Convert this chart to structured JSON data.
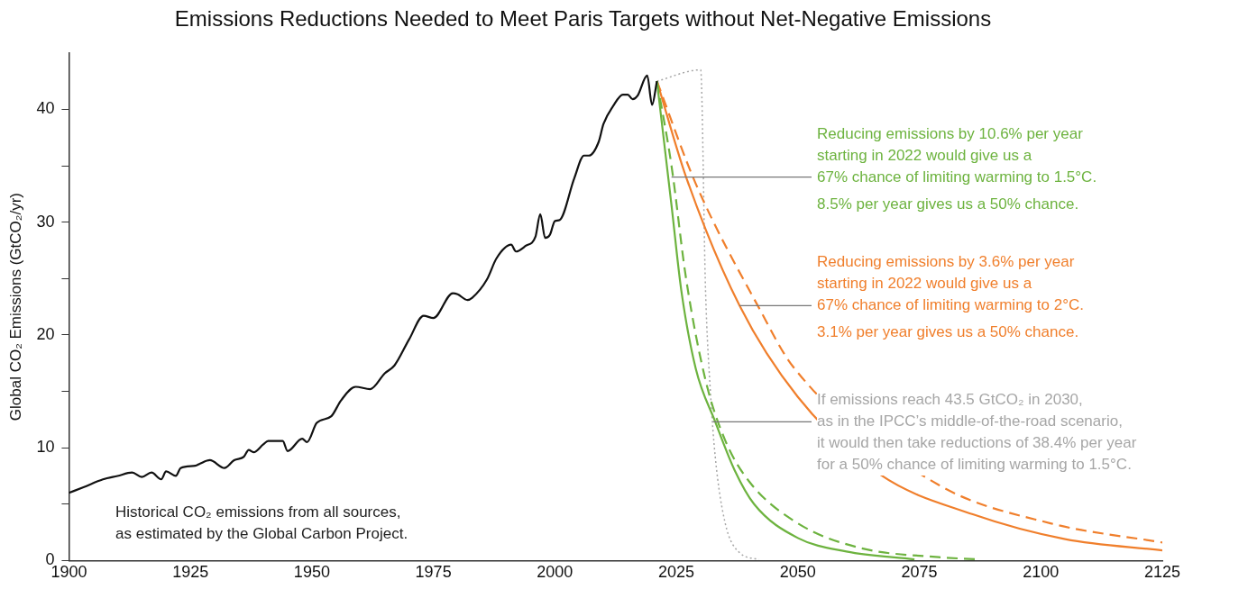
{
  "chart_data": {
    "type": "line",
    "title": "Emissions Reductions Needed to Meet Paris Targets without Net-Negative Emissions",
    "ylabel": "Global CO₂ Emissions (GtCO₂/yr)",
    "xlim": [
      1900,
      2125
    ],
    "xticks": [
      1900,
      1925,
      1950,
      1975,
      2000,
      2025,
      2050,
      2075,
      2100,
      2125
    ],
    "ylim": [
      0,
      45
    ],
    "yticks": [
      0,
      {
        "value": 5,
        "label": null
      },
      10,
      {
        "value": 15,
        "label": null
      },
      20,
      {
        "value": 25,
        "label": null
      },
      30,
      {
        "value": 35,
        "label": null
      },
      40
    ],
    "marker": "none",
    "series": [
      {
        "color": "#111111",
        "line_style": "solid",
        "x": [
          1900,
          1903,
          1907,
          1910,
          1913,
          1915,
          1917,
          1919,
          1920,
          1922,
          1923,
          1926,
          1927,
          1929,
          1932,
          1934,
          1936,
          1937,
          1938,
          1940,
          1941,
          1944,
          1945,
          1948,
          1949,
          1951,
          1954,
          1956,
          1959,
          1962,
          1965,
          1967,
          1970,
          1973,
          1975,
          1979,
          1980,
          1982,
          1983,
          1986,
          1988,
          1991,
          1992,
          1994,
          1996,
          1997,
          1998,
          1999,
          2000,
          2001,
          2004,
          2006,
          2007,
          2009,
          2010,
          2012,
          2014,
          2015,
          2016,
          2017,
          2019,
          2020,
          2021
        ],
        "values": [
          6.0,
          6.5,
          7.2,
          7.5,
          7.8,
          7.4,
          7.8,
          7.2,
          7.9,
          7.5,
          8.2,
          8.4,
          8.6,
          8.9,
          8.2,
          8.9,
          9.2,
          9.8,
          9.6,
          10.3,
          10.6,
          10.6,
          9.7,
          10.8,
          10.5,
          12.2,
          12.8,
          14.2,
          15.4,
          15.2,
          16.6,
          17.3,
          19.6,
          21.7,
          21.5,
          23.7,
          23.6,
          23.1,
          23.3,
          24.9,
          26.8,
          28.0,
          27.4,
          27.9,
          28.7,
          30.7,
          28.6,
          28.9,
          30.1,
          30.2,
          33.9,
          35.9,
          35.9,
          37.1,
          38.7,
          40.3,
          41.3,
          41.3,
          40.9,
          41.2,
          43.0,
          40.4,
          42.5
        ]
      },
      {
        "color": "#6db33f",
        "line_style": "solid",
        "x": [
          2021,
          2024,
          2026,
          2029,
          2033,
          2037,
          2041,
          2050,
          2060,
          2074
        ],
        "values": [
          42.5,
          31.5,
          24,
          17,
          12.3,
          8,
          5,
          2,
          0.8,
          0.1
        ]
      },
      {
        "color": "#6db33f",
        "line_style": "dashed",
        "x": [
          2021,
          2024,
          2027,
          2031,
          2035,
          2040,
          2050,
          2063,
          2079,
          2087
        ],
        "values": [
          42.5,
          35,
          25,
          16,
          10.7,
          7,
          3.3,
          1.1,
          0.3,
          0.1
        ]
      },
      {
        "color": "#f07f2c",
        "line_style": "solid",
        "x": [
          2021,
          2027,
          2038,
          2050,
          2067,
          2086,
          2105,
          2125
        ],
        "values": [
          42.5,
          34,
          22.6,
          14.5,
          7.6,
          4.1,
          1.9,
          0.9
        ]
      },
      {
        "color": "#f07f2c",
        "line_style": "dashed",
        "x": [
          2021,
          2029,
          2042,
          2049,
          2079,
          2102,
          2125
        ],
        "values": [
          42.5,
          33.4,
          22.4,
          17.2,
          6.7,
          3.3,
          1.6
        ]
      },
      {
        "color": "#a6a6a6",
        "line_style": "dotted",
        "x": [
          2021,
          2030,
          2031,
          2032,
          2033,
          2035,
          2038,
          2042
        ],
        "values": [
          42.5,
          43.5,
          24,
          15,
          9.2,
          3.4,
          0.7,
          0.1
        ]
      }
    ],
    "annotations": [
      "Historical CO₂ emissions from all sources,\nas estimated by the Global Carbon Project.",
      {
        "text": "Reducing emissions by 10.6% per year\nstarting in 2022 would give us a\n67% chance of limiting warming to 1.5°C.",
        "x": 2024,
        "y": 34
      },
      "8.5% per year gives us a 50% chance.",
      {
        "text": "Reducing emissions by 3.6% per year\nstarting in 2022 would give us a\n67% chance of limiting warming to 2°C.",
        "x": 2038,
        "y": 22.6
      },
      "3.1% per year gives us a 50% chance.",
      {
        "text": "If emissions reach 43.5 GtCO₂ in 2030,\nas in the IPCC’s middle-of-the-road scenario,\nit would then take reductions of 38.4% per year\nfor a 50% chance of limiting warming to 1.5°C.",
        "x": 2032.5,
        "y": 12.3
      }
    ]
  }
}
